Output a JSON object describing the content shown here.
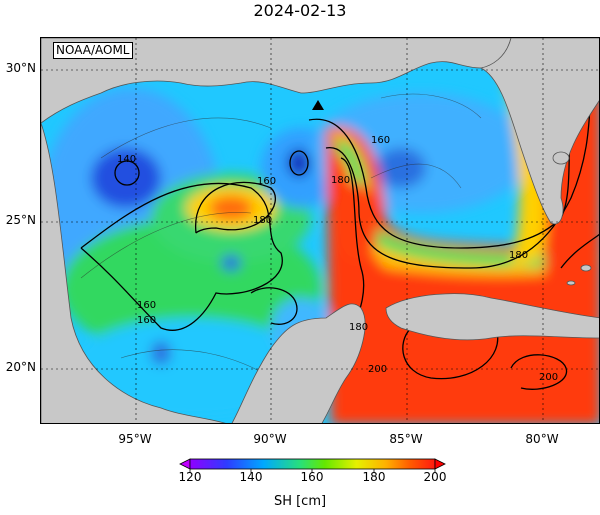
{
  "title": "2024-02-13",
  "credit": "NOAA/AOML",
  "latitude_labels": [
    "30°N",
    "25°N",
    "20°N"
  ],
  "longitude_labels": [
    "95°W",
    "90°W",
    "85°W",
    "80°W"
  ],
  "contour_labels": [
    "140",
    "160",
    "180",
    "160",
    "180",
    "160",
    "180",
    "200",
    "200",
    "180",
    "160"
  ],
  "colorbar": {
    "ticks": [
      "120",
      "140",
      "160",
      "180",
      "200"
    ],
    "label": "SH [cm]",
    "range": [
      120,
      200
    ],
    "colors": [
      "#9000ff",
      "#2e3cff",
      "#00a8ff",
      "#28e07a",
      "#64e800",
      "#e6f000",
      "#ffb000",
      "#ff5a00",
      "#ff1a10"
    ]
  },
  "colors": {
    "land": "#c8c8c8",
    "high": "#ff3a10",
    "low": "#2080ff",
    "mid": "#38d870"
  },
  "marker": "triangle-marker"
}
